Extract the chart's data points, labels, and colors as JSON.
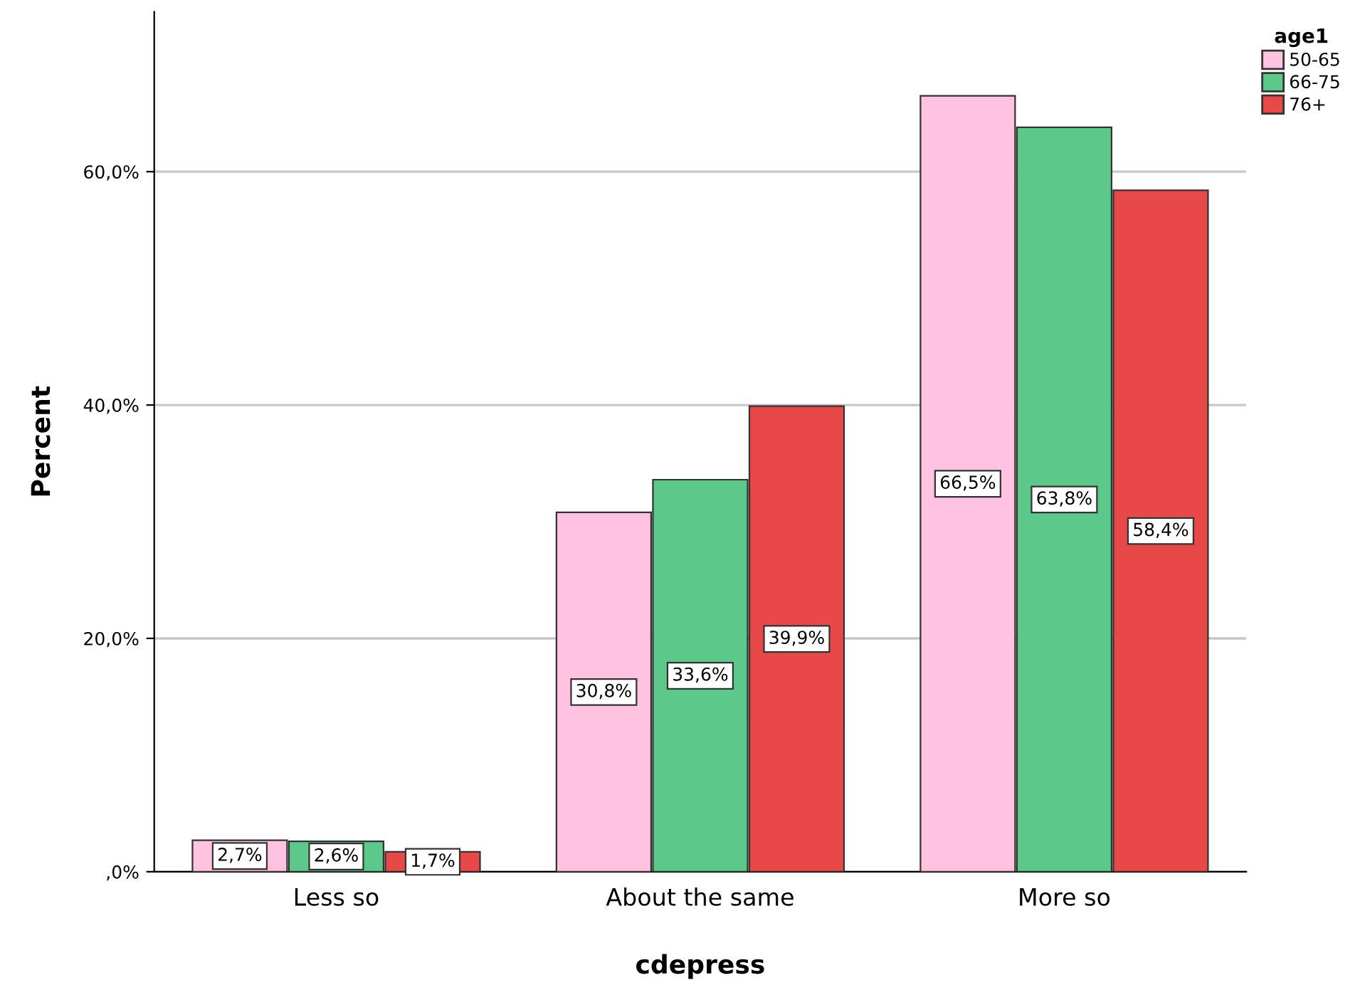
{
  "chart_data": {
    "type": "bar",
    "xlabel": "cdepress",
    "ylabel": "Percent",
    "legend_title": "age1",
    "categories": [
      "Less so",
      "About the same",
      "More so"
    ],
    "series": [
      {
        "name": "50-65",
        "color": "#ffc2e0",
        "values": [
          2.7,
          30.8,
          66.5
        ],
        "value_labels": [
          "2,7%",
          "30,8%",
          "66,5%"
        ]
      },
      {
        "name": "66-75",
        "color": "#5cc98a",
        "values": [
          2.6,
          33.6,
          63.8
        ],
        "value_labels": [
          "2,6%",
          "33,6%",
          "63,8%"
        ]
      },
      {
        "name": "76+",
        "color": "#e94848",
        "values": [
          1.7,
          39.9,
          58.4
        ],
        "value_labels": [
          "1,7%",
          "39,9%",
          "58,4%"
        ]
      }
    ],
    "ylim": [
      0,
      73.7
    ],
    "yticks": [
      {
        "value": 0,
        "label": ",0%"
      },
      {
        "value": 20,
        "label": "20,0%"
      },
      {
        "value": 40,
        "label": "40,0%"
      },
      {
        "value": 60,
        "label": "60,0%"
      }
    ],
    "grid": "y",
    "legend": "top right"
  }
}
